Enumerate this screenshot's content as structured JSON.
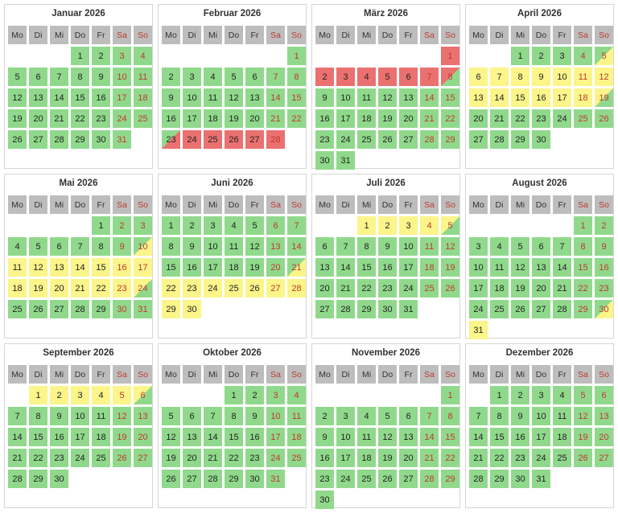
{
  "weekdays": [
    "Mo",
    "Di",
    "Mi",
    "Do",
    "Fr",
    "Sa",
    "So"
  ],
  "legend_colors": {
    "green": "#90d98c",
    "yellow": "#fbf58a",
    "red": "#eb7070",
    "header": "#bdbdbd",
    "weekend_text": "#c0392b"
  },
  "months": [
    {
      "title": "Januar 2026",
      "offset": 3,
      "days": 31,
      "yellow": [],
      "red": [],
      "split": {}
    },
    {
      "title": "Februar 2026",
      "offset": 6,
      "days": 28,
      "yellow": [],
      "red": [
        24,
        25,
        26,
        27,
        28
      ],
      "split": {
        "23": "gr"
      }
    },
    {
      "title": "März 2026",
      "offset": 6,
      "days": 31,
      "yellow": [],
      "red": [
        1,
        2,
        3,
        4,
        5,
        6,
        7
      ],
      "split": {
        "8": "rg"
      }
    },
    {
      "title": "April 2026",
      "offset": 2,
      "days": 30,
      "yellow": [
        6,
        7,
        8,
        9,
        10,
        11,
        12,
        13,
        14,
        15,
        16,
        17,
        18
      ],
      "red": [],
      "split": {
        "5": "gy",
        "19": "yg"
      }
    },
    {
      "title": "Mai 2026",
      "offset": 4,
      "days": 31,
      "yellow": [
        11,
        12,
        13,
        14,
        15,
        16,
        17,
        18,
        19,
        20,
        21,
        22,
        23
      ],
      "red": [],
      "split": {
        "10": "gy",
        "24": "yg"
      }
    },
    {
      "title": "Juni 2026",
      "offset": 0,
      "days": 30,
      "yellow": [
        22,
        23,
        24,
        25,
        26,
        27,
        28,
        29,
        30
      ],
      "red": [],
      "split": {
        "21": "gy"
      }
    },
    {
      "title": "Juli 2026",
      "offset": 2,
      "days": 31,
      "yellow": [
        1,
        2,
        3,
        4
      ],
      "red": [],
      "split": {
        "5": "yg"
      }
    },
    {
      "title": "August 2026",
      "offset": 5,
      "days": 31,
      "yellow": [
        31
      ],
      "red": [],
      "split": {
        "30": "gy"
      }
    },
    {
      "title": "September 2026",
      "offset": 1,
      "days": 30,
      "yellow": [
        1,
        2,
        3,
        4,
        5
      ],
      "red": [],
      "split": {
        "6": "yg"
      }
    },
    {
      "title": "Oktober 2026",
      "offset": 3,
      "days": 31,
      "yellow": [],
      "red": [],
      "split": {}
    },
    {
      "title": "November 2026",
      "offset": 6,
      "days": 30,
      "yellow": [],
      "red": [],
      "split": {}
    },
    {
      "title": "Dezember 2026",
      "offset": 1,
      "days": 31,
      "yellow": [],
      "red": [],
      "split": {}
    }
  ]
}
